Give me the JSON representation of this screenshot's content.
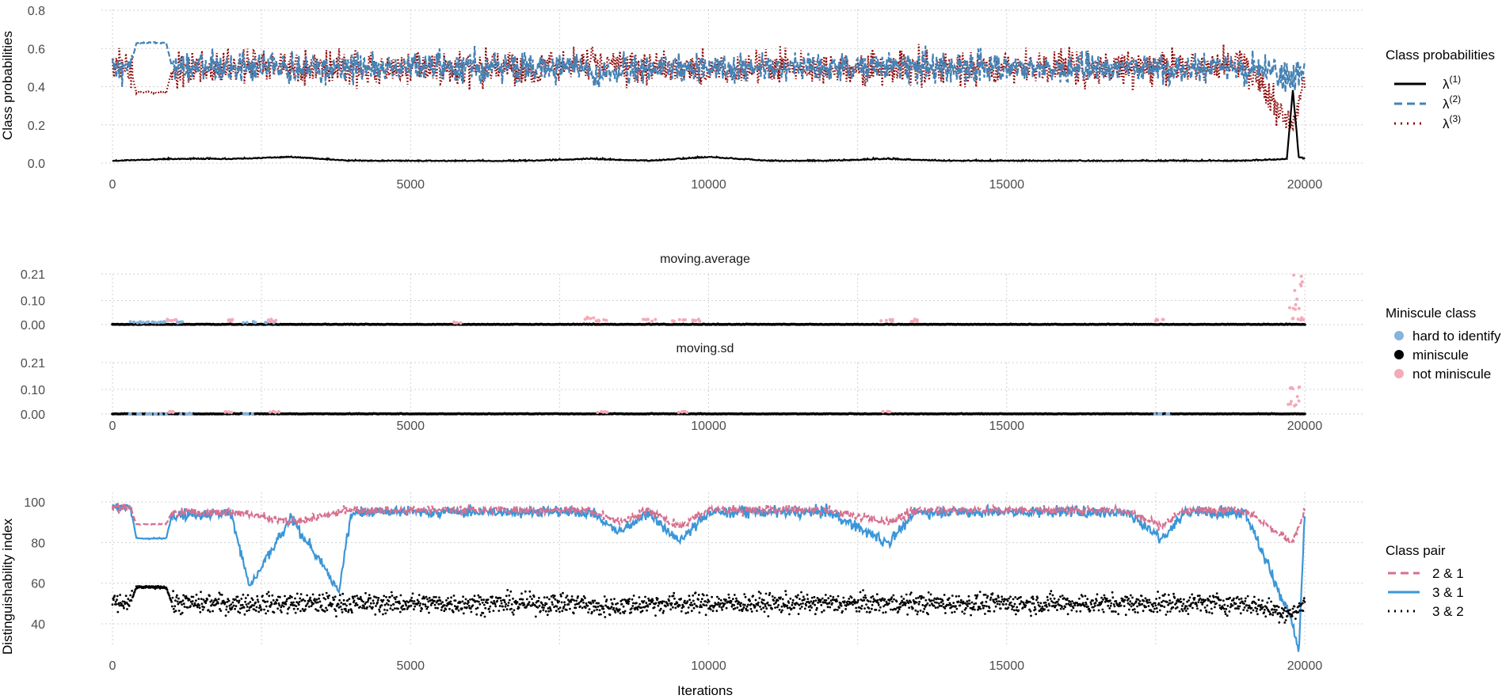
{
  "figure": {
    "x_axis_title": "Iterations",
    "x_ticks": [
      0,
      5000,
      10000,
      15000,
      20000
    ]
  },
  "colors": {
    "lambda1": "#000000",
    "lambda2": "#4682B4",
    "lambda3": "#8B0000",
    "hard": "#85B4DC",
    "miniscule": "#000000",
    "not_miniscule": "#F4AAB9",
    "pair21": "#D6708F",
    "pair31": "#3A96D8",
    "pair32": "#000000"
  },
  "legends": {
    "class_prob": {
      "title": "Class probabilities",
      "items": [
        {
          "base": "λ",
          "sup": "(1)"
        },
        {
          "base": "λ",
          "sup": "(2)"
        },
        {
          "base": "λ",
          "sup": "(3)"
        }
      ]
    },
    "miniscule": {
      "title": "Miniscule class",
      "items": [
        "hard to identify",
        "miniscule",
        "not miniscule"
      ]
    },
    "class_pair": {
      "title": "Class pair",
      "items": [
        "2 & 1",
        "3 & 1",
        "3 & 2"
      ]
    }
  },
  "chart_data": [
    {
      "type": "line",
      "ylabel": "Class probabilities",
      "xlim": [
        0,
        20000
      ],
      "ylim": [
        0,
        0.8
      ],
      "y_ticks": [
        "0.0",
        "0.2",
        "0.4",
        "0.6",
        "0.8"
      ],
      "grid": true,
      "series": [
        {
          "name": "λ(1)",
          "style": "solid",
          "x": [
            0,
            1000,
            2000,
            3000,
            4000,
            5000,
            6000,
            7000,
            8000,
            9000,
            10000,
            11000,
            12000,
            13000,
            14000,
            15000,
            16000,
            17000,
            18000,
            19000,
            19700,
            19800,
            19900,
            20000
          ],
          "y": [
            0.01,
            0.02,
            0.02,
            0.03,
            0.01,
            0.01,
            0.01,
            0.01,
            0.02,
            0.01,
            0.03,
            0.01,
            0.01,
            0.02,
            0.01,
            0.01,
            0.01,
            0.01,
            0.01,
            0.01,
            0.02,
            0.38,
            0.03,
            0.02
          ]
        },
        {
          "name": "λ(2)",
          "style": "dashed",
          "x": [
            0,
            300,
            400,
            900,
            1000,
            2000,
            3000,
            4000,
            5000,
            6000,
            7000,
            7900,
            8100,
            9000,
            10000,
            11000,
            12000,
            13000,
            14000,
            15000,
            16000,
            17000,
            17500,
            18000,
            19000,
            19800,
            20000
          ],
          "y": [
            0.5,
            0.5,
            0.63,
            0.63,
            0.5,
            0.5,
            0.49,
            0.5,
            0.5,
            0.5,
            0.5,
            0.5,
            0.45,
            0.5,
            0.5,
            0.5,
            0.5,
            0.5,
            0.5,
            0.5,
            0.5,
            0.5,
            0.5,
            0.5,
            0.5,
            0.45,
            0.5
          ]
        },
        {
          "name": "λ(3)",
          "style": "dotted",
          "x": [
            0,
            300,
            400,
            900,
            1000,
            2000,
            3000,
            4000,
            5000,
            6000,
            7000,
            7900,
            8100,
            9000,
            10000,
            11000,
            12000,
            13000,
            14000,
            15000,
            16000,
            17000,
            17500,
            18000,
            19000,
            19800,
            20000
          ],
          "y": [
            0.5,
            0.5,
            0.37,
            0.37,
            0.49,
            0.5,
            0.51,
            0.5,
            0.5,
            0.5,
            0.5,
            0.5,
            0.53,
            0.5,
            0.48,
            0.5,
            0.5,
            0.49,
            0.5,
            0.5,
            0.5,
            0.5,
            0.5,
            0.5,
            0.5,
            0.2,
            0.48
          ]
        }
      ]
    },
    {
      "type": "scatter",
      "facet": "moving.average",
      "xlim": [
        0,
        20000
      ],
      "ylim": [
        0,
        0.21
      ],
      "y_ticks": [
        "0.00",
        "0.10",
        "0.21"
      ],
      "grid": true,
      "series": [
        {
          "name": "hard to identify",
          "x": [
            400,
            600,
            800,
            1200,
            2300,
            2600
          ],
          "y": [
            0.01,
            0.01,
            0.01,
            0.01,
            0.01,
            0.01
          ]
        },
        {
          "name": "miniscule",
          "x": [
            0,
            5000,
            10000,
            15000,
            20000
          ],
          "y": [
            0.0,
            0.0,
            0.0,
            0.0,
            0.0
          ]
        },
        {
          "name": "not miniscule",
          "x": [
            1000,
            2000,
            2700,
            5800,
            8000,
            8200,
            9000,
            9500,
            9800,
            13000,
            13400,
            17600,
            19800,
            19850,
            19900
          ],
          "y": [
            0.02,
            0.02,
            0.02,
            0.01,
            0.03,
            0.02,
            0.02,
            0.02,
            0.02,
            0.02,
            0.02,
            0.02,
            0.1,
            0.2,
            0.03
          ]
        }
      ]
    },
    {
      "type": "scatter",
      "facet": "moving.sd",
      "xlim": [
        0,
        20000
      ],
      "ylim": [
        0,
        0.21
      ],
      "y_ticks": [
        "0.00",
        "0.10",
        "0.21"
      ],
      "grid": true,
      "series": [
        {
          "name": "hard to identify",
          "x": [
            400,
            600,
            800,
            1200,
            2300,
            17600
          ],
          "y": [
            0.0,
            0.0,
            0.0,
            0.0,
            0.0,
            0.0
          ]
        },
        {
          "name": "miniscule",
          "x": [
            0,
            5000,
            10000,
            15000,
            20000
          ],
          "y": [
            0.0,
            0.0,
            0.0,
            0.0,
            0.0
          ]
        },
        {
          "name": "not miniscule",
          "x": [
            1000,
            2000,
            2700,
            8200,
            9600,
            13000,
            19800,
            19850
          ],
          "y": [
            0.01,
            0.01,
            0.01,
            0.01,
            0.01,
            0.01,
            0.05,
            0.11
          ]
        }
      ]
    },
    {
      "type": "line",
      "ylabel": "Distinguishability index",
      "xlabel": "Iterations",
      "xlim": [
        0,
        20000
      ],
      "ylim": [
        25,
        102
      ],
      "y_ticks": [
        "40",
        "60",
        "80",
        "100"
      ],
      "grid": true,
      "series": [
        {
          "name": "2 & 1",
          "style": "dashed",
          "x": [
            0,
            300,
            400,
            900,
            1000,
            2000,
            3000,
            4000,
            5000,
            6000,
            7000,
            8000,
            8500,
            9000,
            9500,
            10000,
            11000,
            12000,
            13000,
            13500,
            14000,
            15000,
            16000,
            17000,
            17600,
            18000,
            19000,
            19800,
            20000
          ],
          "y": [
            97,
            97,
            89,
            89,
            95,
            95,
            90,
            96,
            96,
            96,
            96,
            96,
            90,
            96,
            88,
            96,
            96,
            96,
            90,
            96,
            96,
            96,
            96,
            96,
            88,
            96,
            96,
            80,
            95
          ]
        },
        {
          "name": "3 & 1",
          "style": "solid",
          "x": [
            0,
            300,
            400,
            900,
            1000,
            2000,
            2300,
            3000,
            3800,
            4000,
            5000,
            6000,
            7000,
            8000,
            8500,
            9000,
            9500,
            10000,
            11000,
            12000,
            13000,
            13500,
            14000,
            15000,
            16000,
            17000,
            17600,
            18000,
            19000,
            19800,
            19900,
            20000
          ],
          "y": [
            98,
            98,
            82,
            82,
            94,
            94,
            58,
            92,
            56,
            95,
            95,
            95,
            95,
            95,
            85,
            95,
            80,
            95,
            95,
            95,
            80,
            95,
            95,
            95,
            95,
            95,
            82,
            95,
            95,
            40,
            26,
            94
          ]
        },
        {
          "name": "3 & 2",
          "style": "dotted",
          "x": [
            0,
            300,
            400,
            900,
            1000,
            2000,
            3000,
            4000,
            5000,
            6000,
            7000,
            7900,
            8100,
            9000,
            10000,
            11000,
            12000,
            13000,
            14000,
            15000,
            16000,
            17000,
            17500,
            18000,
            19000,
            19800,
            20000
          ],
          "y": [
            50,
            50,
            58,
            58,
            50,
            50,
            50,
            50,
            50,
            50,
            50,
            50,
            48,
            50,
            50,
            50,
            50,
            50,
            50,
            50,
            50,
            50,
            50,
            50,
            50,
            45,
            50
          ]
        }
      ]
    }
  ]
}
